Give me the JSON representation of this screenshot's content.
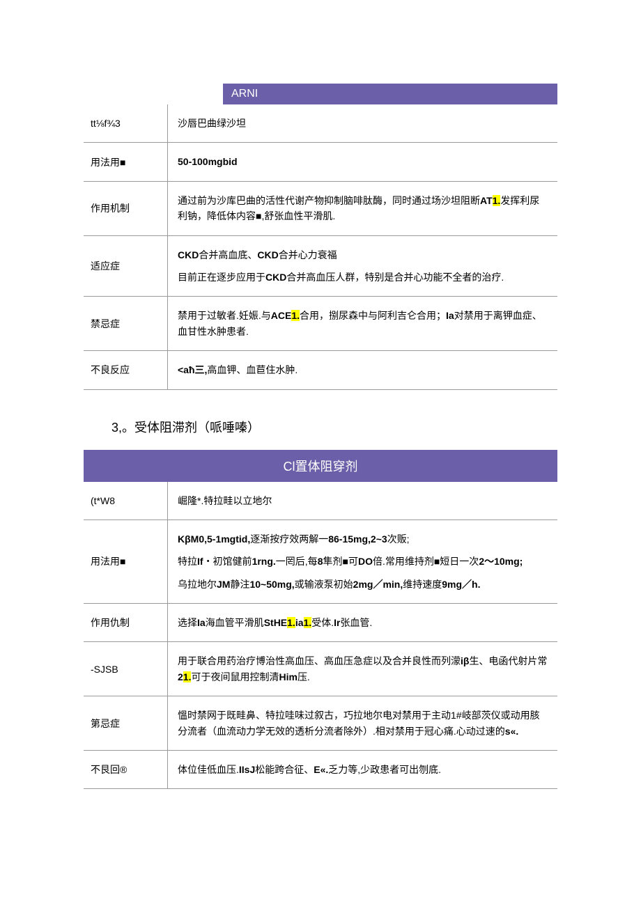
{
  "table1": {
    "header": "ARNI",
    "header_bg": "#6a5fa8",
    "header_fg": "#ffffff",
    "rows": [
      {
        "label": "tt⅛f¾3",
        "segments": [
          {
            "text": "沙唇巴曲绿沙坦"
          }
        ]
      },
      {
        "label": "用法用■",
        "segments": [
          {
            "text": "50-100mgbid",
            "bold": true
          }
        ]
      },
      {
        "label": "作用机制",
        "segments": [
          {
            "text": "通过前为沙库巴曲的活性代谢产物抑制脑啡肽酶，同时通过场沙坦阻断"
          },
          {
            "text": "AT",
            "bold": true
          },
          {
            "text": "1.",
            "hl": true,
            "bold": true
          },
          {
            "text": "发挥利尿利钠，降低体内容■,舒张血性平滑肌."
          }
        ]
      },
      {
        "label": "适应症",
        "paragraphs": [
          [
            {
              "text": "CKD",
              "bold": true
            },
            {
              "text": "合并高血底、"
            },
            {
              "text": "CKD",
              "bold": true
            },
            {
              "text": "合并心力衰福"
            }
          ],
          [
            {
              "text": "目前正在逐步应用于"
            },
            {
              "text": "CKD",
              "bold": true
            },
            {
              "text": "合并高血压人群，特别是合并心功能不全者的治疗."
            }
          ]
        ]
      },
      {
        "label": "禁忌症",
        "segments": [
          {
            "text": "禁用于过敏者.妊娠.与"
          },
          {
            "text": "ACE",
            "bold": true
          },
          {
            "text": "1.",
            "hl": true,
            "bold": true
          },
          {
            "text": "合用，捌尿森中与阿利吉仑合用；"
          },
          {
            "text": "Ia",
            "bold": true
          },
          {
            "text": "对禁用于离钾血症、血甘性水肿患者."
          }
        ]
      },
      {
        "label": "不良反应",
        "segments": [
          {
            "text": "<aħ三,",
            "bold": true
          },
          {
            "text": "高血钾、血苣住水肿."
          }
        ]
      }
    ]
  },
  "section_title": "3,。受体阻滞剂（哌唾嗪）",
  "table2": {
    "header": "Cl置体阻穿剂",
    "header_bg": "#6a5fa8",
    "header_fg": "#ffffff",
    "rows": [
      {
        "label": "(t*W8",
        "segments": [
          {
            "text": "崛隆*.特拉畦以立地尔"
          }
        ]
      },
      {
        "label": "用法用■",
        "paragraphs": [
          [
            {
              "text": "KβM0,5-1mgtid,",
              "bold": true
            },
            {
              "text": "逐渐按疗效两解一"
            },
            {
              "text": "86-15mg,2~3",
              "bold": true
            },
            {
              "text": "次贩;"
            }
          ],
          [
            {
              "text": "特拉"
            },
            {
              "text": "If",
              "bold": true
            },
            {
              "text": "・初馆健前"
            },
            {
              "text": "1rng.",
              "bold": true
            },
            {
              "text": "一罔后,每"
            },
            {
              "text": "8",
              "bold": true
            },
            {
              "text": "隼剂■可"
            },
            {
              "text": "DO",
              "bold": true
            },
            {
              "text": "倍.常用维持剂■短日一次"
            },
            {
              "text": "2〜10mg;",
              "bold": true
            }
          ],
          [
            {
              "text": "乌拉地尔"
            },
            {
              "text": "JM",
              "bold": true
            },
            {
              "text": "静注"
            },
            {
              "text": "10~50mg,",
              "bold": true
            },
            {
              "text": "或输液泵初始"
            },
            {
              "text": "2mg／min,",
              "bold": true
            },
            {
              "text": "维持速度"
            },
            {
              "text": "9mg／h.",
              "bold": true
            }
          ]
        ]
      },
      {
        "label": "作用仇制",
        "segments": [
          {
            "text": "选择"
          },
          {
            "text": "Ia",
            "bold": true
          },
          {
            "text": "海血管平滑肌"
          },
          {
            "text": "StHE",
            "bold": true
          },
          {
            "text": "1.",
            "hl": true,
            "bold": true
          },
          {
            "text": "ia",
            "bold": true
          },
          {
            "text": "1.",
            "hl": true,
            "bold": true
          },
          {
            "text": "受体."
          },
          {
            "text": "Ir",
            "bold": true
          },
          {
            "text": "张血管."
          }
        ]
      },
      {
        "label": "-SJSB",
        "segments": [
          {
            "text": "用于联合用药治疗博治性高血压、高血压急症以及合并良性而列濛"
          },
          {
            "text": "iβ",
            "bold": true
          },
          {
            "text": "生、电函代射片常"
          },
          {
            "text": "2",
            "bold": true
          },
          {
            "text": "1.",
            "hl": true,
            "bold": true
          },
          {
            "text": "可于夜间鼠用控制清"
          },
          {
            "text": "Him",
            "bold": true
          },
          {
            "text": "压."
          }
        ]
      },
      {
        "label": "第忌症",
        "segments": [
          {
            "text": "慍时禁网于既畦鼻、特拉哇味过叙古，巧拉地尔电对禁用于主动1#岐部茨仪或动用胲分流者（血流动力学无效的透析分流者除外）.相对禁用于冠心痛.心动过速的"
          },
          {
            "text": "s«.",
            "bold": true
          }
        ]
      },
      {
        "label": "不艮回®",
        "segments": [
          {
            "text": "体位佳低血压."
          },
          {
            "text": "IIsJ",
            "bold": true
          },
          {
            "text": "松能跨合征、"
          },
          {
            "text": "E«.",
            "bold": true
          },
          {
            "text": "乏力等,少政患者可出刎底."
          }
        ]
      }
    ]
  }
}
